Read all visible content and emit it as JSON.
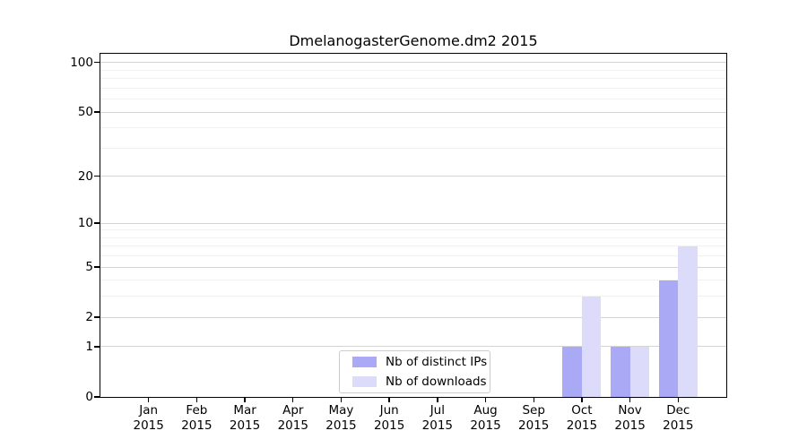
{
  "chart_data": {
    "type": "bar",
    "title": "DmelanogasterGenome.dm2 2015",
    "categories": [
      "Jan",
      "Feb",
      "Mar",
      "Apr",
      "May",
      "Jun",
      "Jul",
      "Aug",
      "Sep",
      "Oct",
      "Nov",
      "Dec"
    ],
    "category_year": "2015",
    "series": [
      {
        "name": "Nb of distinct IPs",
        "color": "#a9a9f5",
        "values": [
          0,
          0,
          0,
          0,
          0,
          0,
          0,
          0,
          0,
          1,
          1,
          4
        ]
      },
      {
        "name": "Nb of downloads",
        "color": "#dcdcfa",
        "values": [
          0,
          0,
          0,
          0,
          0,
          0,
          0,
          0,
          0,
          3,
          1,
          7
        ]
      }
    ],
    "xlabel": "",
    "ylabel": "",
    "yscale": "log1p",
    "ylim": [
      0,
      113
    ],
    "y_ticks": [
      0,
      1,
      2,
      5,
      10,
      20,
      50,
      100
    ],
    "y_minor_ticks": [
      3,
      4,
      6,
      7,
      8,
      9,
      30,
      40,
      60,
      70,
      80,
      90
    ],
    "grid": true,
    "legend_position": "lower center"
  },
  "colors": {
    "background": "#ffffff",
    "bar_distinct_ips": "#a9a9f5",
    "bar_downloads": "#dcdcfa",
    "grid_major": "#d4d4d4",
    "grid_minor": "#f1f1f1",
    "axis": "#000000",
    "legend_border": "#cccccc",
    "text": "#000000"
  }
}
